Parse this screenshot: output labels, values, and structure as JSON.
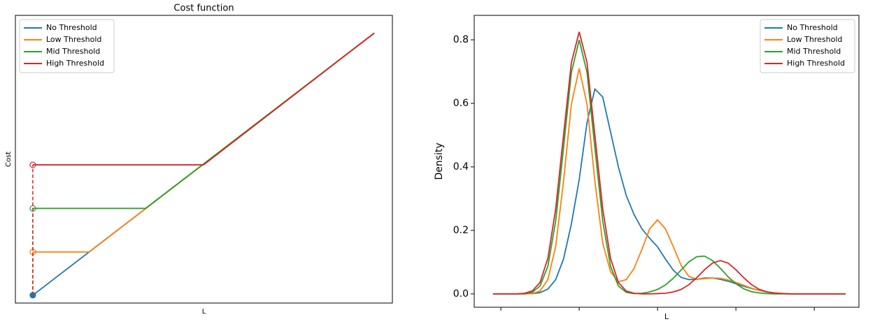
{
  "chart_data": [
    {
      "type": "line",
      "title": "Cost function",
      "xlabel": "L",
      "ylabel": "Cost",
      "xlim": [
        -0.51,
        10.53
      ],
      "ylim": [
        -0.23,
        8.22
      ],
      "legend": "upper left",
      "series": [
        {
          "name": "No Threshold",
          "color": "#1f77b4",
          "marker": "filled",
          "x": [
            0,
            10
          ],
          "values": [
            0,
            7.7
          ]
        },
        {
          "name": "Low Threshold",
          "color": "#ff7f0e",
          "marker": "open",
          "x": [
            0,
            1.65,
            10
          ],
          "values": [
            1.27,
            1.27,
            7.7
          ]
        },
        {
          "name": "Mid Threshold",
          "color": "#2ca02c",
          "marker": "open",
          "x": [
            0,
            3.3,
            10
          ],
          "values": [
            2.55,
            2.55,
            7.7
          ]
        },
        {
          "name": "High Threshold",
          "color": "#d62728",
          "marker": "open",
          "x": [
            0,
            5,
            10
          ],
          "values": [
            3.83,
            3.83,
            7.7
          ]
        }
      ]
    },
    {
      "type": "line",
      "xlabel": "L",
      "ylabel": "Density",
      "xlim": [
        -0.34,
        4.57
      ],
      "ylim": [
        -0.042,
        0.877
      ],
      "legend": "upper right",
      "xticks": [
        {
          "value": 0,
          "label": null
        },
        {
          "value": 1,
          "label": null
        },
        {
          "value": 2,
          "label": null
        },
        {
          "value": 3,
          "label": null
        },
        {
          "value": 4,
          "label": null
        }
      ],
      "yticks": [
        {
          "value": 0,
          "label": "0.0"
        },
        {
          "value": 0.2,
          "label": "0.2"
        },
        {
          "value": 0.4,
          "label": "0.4"
        },
        {
          "value": 0.6,
          "label": "0.6"
        },
        {
          "value": 0.8,
          "label": "0.8"
        }
      ],
      "x": [
        -0.1,
        0,
        0.1,
        0.2,
        0.3,
        0.4,
        0.5,
        0.6,
        0.7,
        0.8,
        0.9,
        1.0,
        1.1,
        1.2,
        1.3,
        1.4,
        1.5,
        1.6,
        1.7,
        1.8,
        1.9,
        2.0,
        2.1,
        2.2,
        2.3,
        2.4,
        2.5,
        2.6,
        2.7,
        2.8,
        2.9,
        3.0,
        3.1,
        3.2,
        3.3,
        3.4,
        3.5,
        3.6,
        3.7,
        3.8,
        3.9,
        4.0,
        4.1,
        4.2,
        4.3,
        4.4
      ],
      "series": [
        {
          "name": "No Threshold",
          "color": "#1f77b4",
          "values": [
            0,
            0,
            0,
            0,
            0,
            0.001,
            0.004,
            0.015,
            0.045,
            0.11,
            0.22,
            0.36,
            0.54,
            0.645,
            0.62,
            0.51,
            0.4,
            0.31,
            0.25,
            0.205,
            0.175,
            0.148,
            0.11,
            0.075,
            0.052,
            0.045,
            0.046,
            0.05,
            0.05,
            0.046,
            0.04,
            0.032,
            0.024,
            0.017,
            0.011,
            0.006,
            0.003,
            0.001,
            0,
            0,
            0,
            0,
            0,
            0,
            0,
            0
          ]
        },
        {
          "name": "Low Threshold",
          "color": "#ff7f0e",
          "values": [
            0,
            0,
            0,
            0,
            0,
            0.001,
            0.009,
            0.045,
            0.15,
            0.355,
            0.597,
            0.71,
            0.597,
            0.355,
            0.16,
            0.07,
            0.038,
            0.045,
            0.08,
            0.14,
            0.205,
            0.233,
            0.205,
            0.15,
            0.09,
            0.055,
            0.046,
            0.048,
            0.05,
            0.049,
            0.044,
            0.036,
            0.027,
            0.018,
            0.011,
            0.006,
            0.003,
            0.001,
            0,
            0,
            0,
            0,
            0,
            0,
            0,
            0
          ]
        },
        {
          "name": "Mid Threshold",
          "color": "#2ca02c",
          "values": [
            0,
            0,
            0,
            0,
            0.001,
            0.005,
            0.025,
            0.087,
            0.23,
            0.46,
            0.697,
            0.8,
            0.697,
            0.46,
            0.23,
            0.087,
            0.025,
            0.005,
            0.001,
            0.002,
            0.006,
            0.014,
            0.028,
            0.049,
            0.075,
            0.101,
            0.117,
            0.119,
            0.105,
            0.081,
            0.054,
            0.032,
            0.016,
            0.007,
            0.003,
            0.001,
            0,
            0,
            0,
            0,
            0,
            0,
            0,
            0,
            0,
            0
          ]
        },
        {
          "name": "High Threshold",
          "color": "#d62728",
          "values": [
            0,
            0,
            0,
            0,
            0.002,
            0.009,
            0.036,
            0.112,
            0.268,
            0.5,
            0.728,
            0.825,
            0.728,
            0.5,
            0.268,
            0.112,
            0.036,
            0.009,
            0.002,
            0,
            0,
            0.001,
            0.002,
            0.006,
            0.014,
            0.029,
            0.051,
            0.076,
            0.097,
            0.105,
            0.097,
            0.076,
            0.051,
            0.029,
            0.014,
            0.006,
            0.002,
            0.001,
            0,
            0,
            0,
            0,
            0,
            0,
            0,
            0
          ]
        }
      ]
    }
  ]
}
